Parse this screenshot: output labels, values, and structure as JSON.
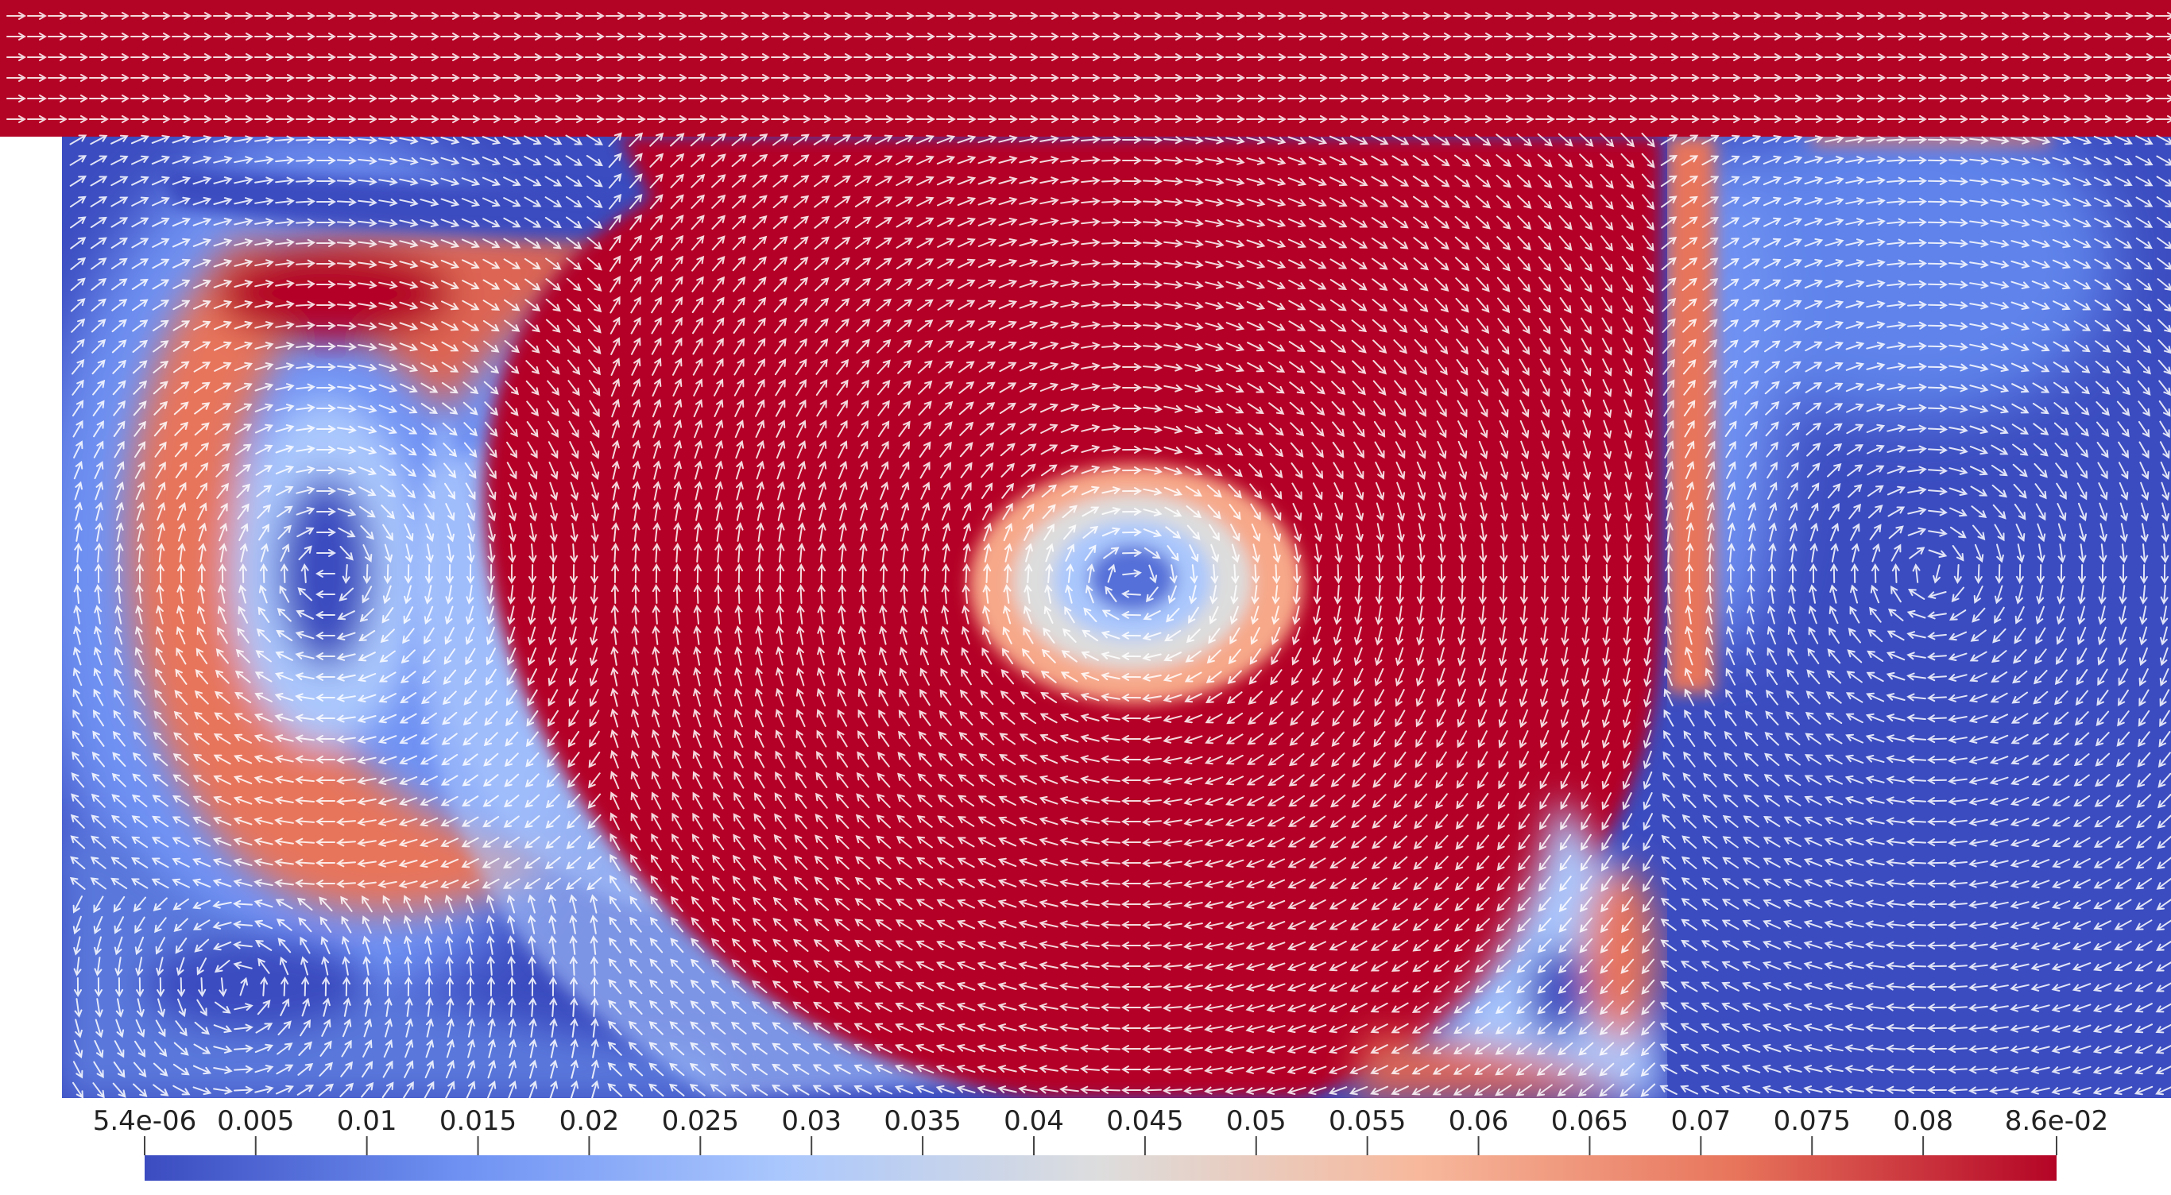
{
  "colorbar": {
    "min_label": "5.4e-06",
    "max_label": "8.6e-02",
    "min_value": 5.4e-06,
    "max_value": 0.086,
    "tick_labels": [
      "5.4e-06",
      "0.005",
      "0.01",
      "0.015",
      "0.02",
      "0.025",
      "0.03",
      "0.035",
      "0.04",
      "0.045",
      "0.05",
      "0.055",
      "0.06",
      "0.065",
      "0.07",
      "0.075",
      "0.08",
      "8.6e-02"
    ],
    "tick_values": [
      5.4e-06,
      0.005,
      0.01,
      0.015,
      0.02,
      0.025,
      0.03,
      0.035,
      0.04,
      0.045,
      0.05,
      0.055,
      0.06,
      0.065,
      0.07,
      0.075,
      0.08,
      0.086
    ],
    "colormap": [
      "#3b4cc0",
      "#6f92f3",
      "#aac7fd",
      "#dddddd",
      "#f7b89c",
      "#e7745b",
      "#b40426"
    ]
  },
  "field_colors": {
    "high": "#b40426",
    "low": "#3b4cc0",
    "mid": "#dddddd",
    "arrows": "#ffffff"
  }
}
